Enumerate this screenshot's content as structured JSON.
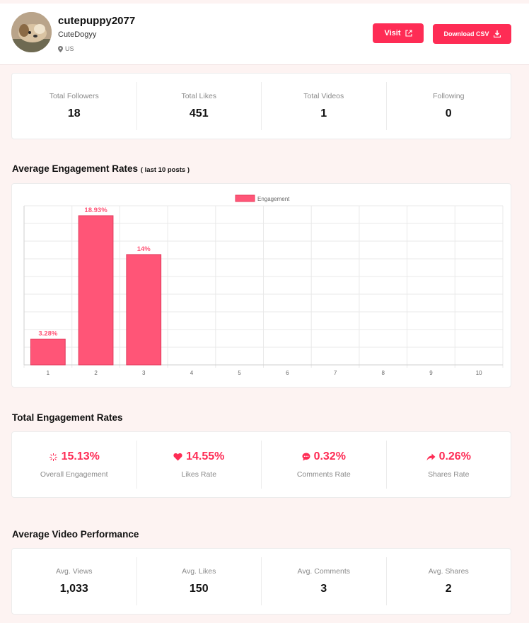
{
  "profile": {
    "username": "cutepuppy2077",
    "nickname": "CuteDogyy",
    "location": "US"
  },
  "buttons": {
    "visit_label": "Visit",
    "csv_label": "Download CSV"
  },
  "summary": [
    {
      "label": "Total Followers",
      "value": "18"
    },
    {
      "label": "Total Likes",
      "value": "451"
    },
    {
      "label": "Total Videos",
      "value": "1"
    },
    {
      "label": "Following",
      "value": "0"
    }
  ],
  "sections": {
    "avg_engagement_title": "Average Engagement Rates",
    "avg_engagement_sub": "( last 10 posts )",
    "total_engagement_title": "Total Engagement Rates",
    "avg_video_title": "Average Video Performance"
  },
  "chart_data": {
    "type": "bar",
    "categories": [
      "1",
      "2",
      "3",
      "4",
      "5",
      "6",
      "7",
      "8",
      "9",
      "10"
    ],
    "series": [
      {
        "name": "Engagement",
        "values": [
          3.28,
          18.93,
          14,
          null,
          null,
          null,
          null,
          null,
          null,
          null
        ],
        "color": "#ff5577"
      }
    ],
    "data_labels": [
      "3.28%",
      "18.93%",
      "14%",
      "",
      "",
      "",
      "",
      "",
      "",
      ""
    ],
    "ylim": [
      0,
      18.93
    ],
    "legend_position": "top",
    "grid": true
  },
  "total_engagement": [
    {
      "icon": "sparkle-icon",
      "value": "15.13%",
      "label": "Overall Engagement"
    },
    {
      "icon": "heart-icon",
      "value": "14.55%",
      "label": "Likes Rate"
    },
    {
      "icon": "comment-icon",
      "value": "0.32%",
      "label": "Comments Rate"
    },
    {
      "icon": "share-icon",
      "value": "0.26%",
      "label": "Shares Rate"
    }
  ],
  "avg_video": [
    {
      "label": "Avg. Views",
      "value": "1,033"
    },
    {
      "label": "Avg. Likes",
      "value": "150"
    },
    {
      "label": "Avg. Comments",
      "value": "3"
    },
    {
      "label": "Avg. Shares",
      "value": "2"
    }
  ],
  "colors": {
    "accent": "#fe2c55",
    "bar": "#ff5577"
  }
}
